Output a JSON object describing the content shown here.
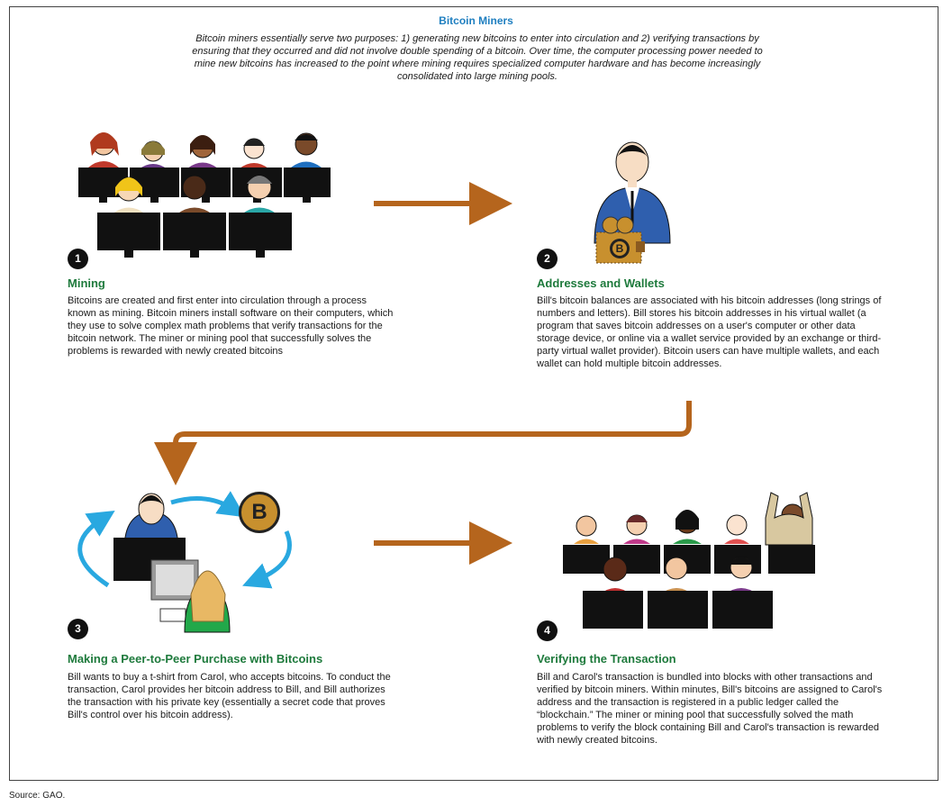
{
  "title": "Bitcoin Miners",
  "intro": "Bitcoin miners essentially serve two purposes: 1) generating new bitcoins to enter into circulation and 2) verifying transactions by ensuring that they occurred and did not involve double spending of a bitcoin. Over time, the computer processing power needed to mine new bitcoins has increased to the point where mining requires specialized computer hardware and has become increasingly consolidated into large mining pools.",
  "steps": [
    {
      "number": "1",
      "title": "Mining",
      "text": "Bitcoins are created and first enter into circulation through a process known as mining. Bitcoin miners install software on their computers, which they use to solve complex math problems that verify transactions for the bitcoin network. The miner or mining pool that successfully solves the problems is rewarded with newly created bitcoins"
    },
    {
      "number": "2",
      "title": "Addresses and Wallets",
      "text": "Bill's bitcoin balances are associated with his bitcoin addresses (long strings of numbers and letters). Bill stores his bitcoin addresses in his virtual wallet (a program that saves bitcoin addresses on a user's computer or other data storage device, or online via a wallet service provided by an exchange or third-party virtual wallet provider). Bitcoin users can have multiple wallets, and each wallet can hold multiple bitcoin addresses."
    },
    {
      "number": "3",
      "title": "Making a Peer-to-Peer Purchase with Bitcoins",
      "text": "Bill wants to buy a t-shirt from Carol, who accepts bitcoins. To conduct the transaction, Carol provides her bitcoin address to Bill, and Bill authorizes the transaction with his private key (essentially a secret code that proves Bill's control over his bitcoin address)."
    },
    {
      "number": "4",
      "title": "Verifying the Transaction",
      "text": "Bill and Carol's transaction is bundled into blocks with other transactions and verified by bitcoin miners. Within minutes, Bill's bitcoins are assigned to Carol's address and the transaction is registered in a public ledger called the “blockchain.” The miner or mining pool that successfully solved the math problems to verify the block containing Bill and Carol's transaction is rewarded with newly created bitcoins."
    }
  ],
  "source": "Source: GAO.",
  "coin_symbol": "B",
  "colors": {
    "title": "#1f7fc0",
    "step_title": "#1e7a3c",
    "arrow": "#b5651d",
    "cycle_arrow": "#29a8e0",
    "coin": "#c8902e"
  }
}
